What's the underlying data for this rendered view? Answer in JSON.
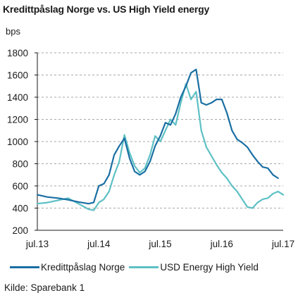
{
  "chart_data": {
    "type": "line",
    "title": "Kredittpåslag Norge vs. US High Yield energy",
    "ylabel": "bps",
    "ylim": [
      200,
      1800
    ],
    "yticks": [
      200,
      400,
      600,
      800,
      1000,
      1200,
      1400,
      1600,
      1800
    ],
    "xlim": [
      "2013-07",
      "2017-07"
    ],
    "xticks": [
      {
        "x": "2013-07",
        "label": "jul.13"
      },
      {
        "x": "2014-07",
        "label": "jul.14"
      },
      {
        "x": "2015-07",
        "label": "jul.15"
      },
      {
        "x": "2016-07",
        "label": "jul.16"
      },
      {
        "x": "2017-07",
        "label": "jul.17"
      }
    ],
    "grid": "horizontal dashed",
    "legend_position": "bottom",
    "series": [
      {
        "name": "Kredittpåslag Norge",
        "color": "#1a6fa3",
        "points": [
          [
            "2013-07",
            520
          ],
          [
            "2013-09",
            500
          ],
          [
            "2013-11",
            490
          ],
          [
            "2014-01",
            475
          ],
          [
            "2014-03",
            455
          ],
          [
            "2014-05",
            440
          ],
          [
            "2014-06",
            450
          ],
          [
            "2014-07",
            600
          ],
          [
            "2014-08",
            620
          ],
          [
            "2014-09",
            700
          ],
          [
            "2014-10",
            880
          ],
          [
            "2014-11",
            960
          ],
          [
            "2014-12",
            1030
          ],
          [
            "2015-01",
            850
          ],
          [
            "2015-02",
            730
          ],
          [
            "2015-03",
            700
          ],
          [
            "2015-04",
            730
          ],
          [
            "2015-05",
            820
          ],
          [
            "2015-06",
            960
          ],
          [
            "2015-07",
            1050
          ],
          [
            "2015-08",
            1170
          ],
          [
            "2015-09",
            1150
          ],
          [
            "2015-10",
            1250
          ],
          [
            "2015-11",
            1400
          ],
          [
            "2015-12",
            1500
          ],
          [
            "2016-01",
            1620
          ],
          [
            "2016-02",
            1650
          ],
          [
            "2016-03",
            1350
          ],
          [
            "2016-04",
            1330
          ],
          [
            "2016-05",
            1350
          ],
          [
            "2016-06",
            1380
          ],
          [
            "2016-07",
            1380
          ],
          [
            "2016-08",
            1260
          ],
          [
            "2016-09",
            1100
          ],
          [
            "2016-10",
            1020
          ],
          [
            "2016-11",
            990
          ],
          [
            "2016-12",
            950
          ],
          [
            "2017-01",
            880
          ],
          [
            "2017-02",
            820
          ],
          [
            "2017-03",
            770
          ],
          [
            "2017-04",
            760
          ],
          [
            "2017-05",
            700
          ],
          [
            "2017-06",
            670
          ]
        ]
      },
      {
        "name": "USD Energy High Yield",
        "color": "#5ec0c4",
        "points": [
          [
            "2013-07",
            440
          ],
          [
            "2013-09",
            450
          ],
          [
            "2013-11",
            470
          ],
          [
            "2014-01",
            490
          ],
          [
            "2014-03",
            440
          ],
          [
            "2014-05",
            390
          ],
          [
            "2014-06",
            380
          ],
          [
            "2014-07",
            450
          ],
          [
            "2014-08",
            480
          ],
          [
            "2014-09",
            550
          ],
          [
            "2014-10",
            700
          ],
          [
            "2014-11",
            820
          ],
          [
            "2014-12",
            1060
          ],
          [
            "2015-01",
            900
          ],
          [
            "2015-02",
            780
          ],
          [
            "2015-03",
            720
          ],
          [
            "2015-04",
            760
          ],
          [
            "2015-05",
            880
          ],
          [
            "2015-06",
            1050
          ],
          [
            "2015-07",
            1000
          ],
          [
            "2015-08",
            1100
          ],
          [
            "2015-09",
            1200
          ],
          [
            "2015-10",
            1150
          ],
          [
            "2015-11",
            1350
          ],
          [
            "2015-12",
            1520
          ],
          [
            "2016-01",
            1380
          ],
          [
            "2016-02",
            1450
          ],
          [
            "2016-03",
            1100
          ],
          [
            "2016-04",
            950
          ],
          [
            "2016-05",
            870
          ],
          [
            "2016-06",
            790
          ],
          [
            "2016-07",
            720
          ],
          [
            "2016-08",
            670
          ],
          [
            "2016-09",
            600
          ],
          [
            "2016-10",
            550
          ],
          [
            "2016-11",
            480
          ],
          [
            "2016-12",
            410
          ],
          [
            "2017-01",
            400
          ],
          [
            "2017-02",
            450
          ],
          [
            "2017-03",
            480
          ],
          [
            "2017-04",
            490
          ],
          [
            "2017-05",
            530
          ],
          [
            "2017-06",
            550
          ],
          [
            "2017-07",
            520
          ]
        ]
      }
    ]
  },
  "source": "Kilde: Sparebank 1"
}
